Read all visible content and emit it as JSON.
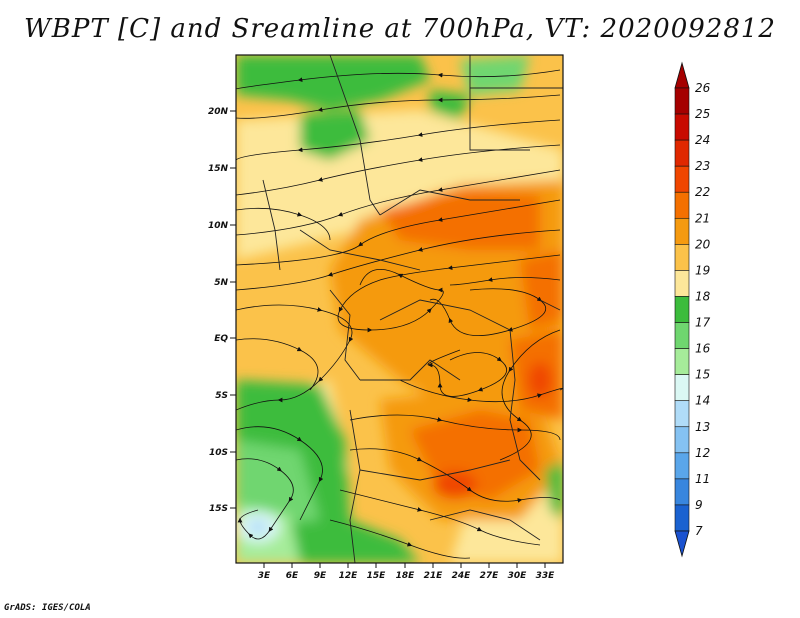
{
  "title": "WBPT [C] and Sreamline at 700hPa, VT: 2020092812",
  "credit": "GrADS: IGES/COLA",
  "map": {
    "lat_labels": [
      "20N",
      "15N",
      "10N",
      "5N",
      "EQ",
      "5S",
      "10S",
      "15S"
    ],
    "lon_labels": [
      "3E",
      "6E",
      "9E",
      "12E",
      "15E",
      "18E",
      "21E",
      "24E",
      "27E",
      "30E",
      "33E"
    ]
  },
  "colorbar": {
    "labels": [
      "26",
      "25",
      "24",
      "23",
      "22",
      "21",
      "20",
      "19",
      "18",
      "17",
      "16",
      "15",
      "14",
      "13",
      "12",
      "11",
      "9",
      "7"
    ],
    "colors": [
      "#a50000",
      "#c80a00",
      "#e02800",
      "#f04600",
      "#f47000",
      "#f59a10",
      "#fbc24a",
      "#fde79a",
      "#3cbc3c",
      "#6fd66f",
      "#a6ec9a",
      "#dbf8f4",
      "#b0dcf8",
      "#85c2f2",
      "#5aa6ea",
      "#3886de",
      "#1a62d0"
    ]
  }
}
